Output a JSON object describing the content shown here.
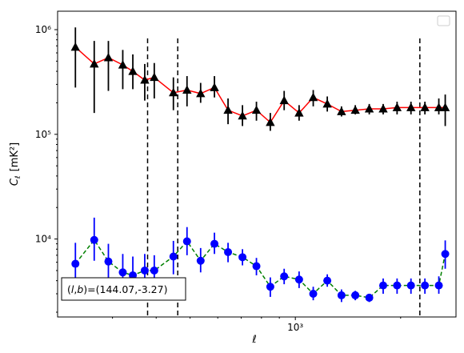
{
  "chart_data": {
    "type": "line",
    "title": "",
    "xlabel": "ℓ",
    "ylabel": "C_ℓ [mK²]",
    "ylabel_main": "C",
    "ylabel_sub": "ℓ",
    "ylabel_unit": "[mK²]",
    "xscale": "log",
    "yscale": "log",
    "xlim": [
      209,
      2880
    ],
    "ylim": [
      1800,
      1500000
    ],
    "x_ticks": [
      {
        "value": 1000,
        "label": "10³"
      }
    ],
    "y_ticks": [
      {
        "value": 10000,
        "label": "10⁴"
      },
      {
        "value": 100000,
        "label": "10⁵"
      },
      {
        "value": 1000000,
        "label": "10⁶"
      }
    ],
    "legend": {
      "position": "top-right",
      "entries": []
    },
    "vertical_lines": [
      378,
      461,
      2270
    ],
    "annotation": "(l,b)=(144.07,-3.27)",
    "annotation_parts": {
      "l": "l",
      "b": "b",
      "rest": ")=(144.07,-3.27)"
    },
    "series": [
      {
        "color": "#ff0000",
        "marker": "triangle",
        "marker_color": "#000000",
        "errorbar_color": "#000000",
        "linestyle": "solid",
        "x": [
          235,
          266,
          292,
          321,
          343,
          371,
          395,
          448,
          490,
          536,
          587,
          642,
          706,
          774,
          848,
          929,
          1025,
          1125,
          1234,
          1355,
          1484,
          1627,
          1783,
          1954,
          2141,
          2347,
          2572,
          2683
        ],
        "y": [
          680000,
          470000,
          540000,
          460000,
          400000,
          330000,
          350000,
          250000,
          265000,
          245000,
          280000,
          170000,
          150000,
          170000,
          130000,
          210000,
          160000,
          225000,
          195000,
          165000,
          170000,
          175000,
          175000,
          180000,
          180000,
          180000,
          180000,
          180000
        ],
        "y_lo": [
          280000,
          160000,
          260000,
          270000,
          270000,
          210000,
          220000,
          170000,
          185000,
          200000,
          225000,
          125000,
          120000,
          135000,
          108000,
          170000,
          135000,
          185000,
          165000,
          148000,
          155000,
          155000,
          155000,
          155000,
          155000,
          155000,
          155000,
          120000
        ],
        "y_hi": [
          1050000,
          780000,
          780000,
          640000,
          580000,
          470000,
          480000,
          350000,
          360000,
          310000,
          360000,
          220000,
          190000,
          205000,
          160000,
          260000,
          190000,
          265000,
          230000,
          185000,
          190000,
          195000,
          195000,
          205000,
          205000,
          205000,
          220000,
          240000
        ]
      },
      {
        "color": "#008000",
        "marker": "circle",
        "marker_color": "#0000ff",
        "errorbar_color": "#0000ff",
        "linestyle": "dashed",
        "x": [
          235,
          266,
          292,
          321,
          343,
          371,
          395,
          448,
          490,
          536,
          587,
          642,
          706,
          774,
          848,
          929,
          1025,
          1125,
          1234,
          1355,
          1484,
          1627,
          1783,
          1954,
          2141,
          2347,
          2572,
          2683
        ],
        "y": [
          5800,
          9800,
          6100,
          4800,
          4500,
          5000,
          5000,
          6800,
          9500,
          6200,
          9000,
          7500,
          6700,
          5500,
          3500,
          4400,
          4100,
          3000,
          4000,
          2900,
          2900,
          2750,
          3600,
          3600,
          3600,
          3600,
          3600,
          7200
        ],
        "y_lo": [
          3400,
          6200,
          4200,
          3200,
          3000,
          3500,
          3500,
          4600,
          7000,
          4800,
          7200,
          6000,
          5600,
          4500,
          2800,
          3700,
          3400,
          2600,
          3500,
          2500,
          2600,
          2500,
          3000,
          3000,
          3000,
          3000,
          3000,
          5200
        ],
        "y_hi": [
          9200,
          16000,
          9000,
          7200,
          6800,
          7200,
          7000,
          9600,
          13000,
          8200,
          11500,
          9200,
          8000,
          6600,
          4300,
          5200,
          4900,
          3500,
          4600,
          3300,
          3200,
          3000,
          4200,
          4200,
          4200,
          4200,
          4400,
          9700
        ]
      }
    ]
  }
}
